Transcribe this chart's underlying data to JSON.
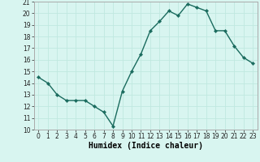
{
  "xlabel": "Humidex (Indice chaleur)",
  "x": [
    0,
    1,
    2,
    3,
    4,
    5,
    6,
    7,
    8,
    9,
    10,
    11,
    12,
    13,
    14,
    15,
    16,
    17,
    18,
    19,
    20,
    21,
    22,
    23
  ],
  "y": [
    14.5,
    14.0,
    13.0,
    12.5,
    12.5,
    12.5,
    12.0,
    11.5,
    10.3,
    13.3,
    15.0,
    16.5,
    18.5,
    19.3,
    20.2,
    19.8,
    20.8,
    20.5,
    20.2,
    18.5,
    18.5,
    17.2,
    16.2,
    15.7
  ],
  "line_color": "#1a6b5e",
  "marker": "D",
  "marker_size": 2.2,
  "line_width": 1.0,
  "bg_color": "#d8f5f0",
  "grid_color": "#c0e8e0",
  "ylim": [
    10,
    21
  ],
  "xlim": [
    -0.5,
    23.5
  ],
  "yticks": [
    10,
    11,
    12,
    13,
    14,
    15,
    16,
    17,
    18,
    19,
    20,
    21
  ],
  "xticks": [
    0,
    1,
    2,
    3,
    4,
    5,
    6,
    7,
    8,
    9,
    10,
    11,
    12,
    13,
    14,
    15,
    16,
    17,
    18,
    19,
    20,
    21,
    22,
    23
  ],
  "tick_fontsize": 5.5,
  "xlabel_fontsize": 7,
  "spine_color": "#aaaaaa"
}
